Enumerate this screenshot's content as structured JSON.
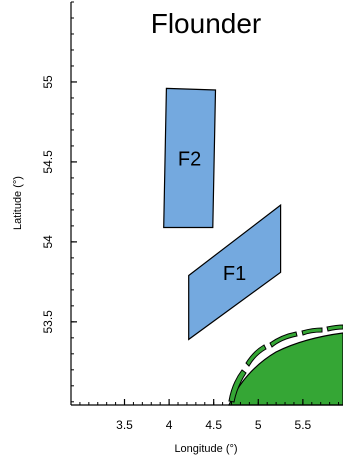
{
  "map": {
    "title": "Flounder",
    "x_axis": {
      "label": "Longitude (°)",
      "ticks": [
        {
          "value": 3.5,
          "label": "3.5"
        },
        {
          "value": 4.0,
          "label": "4"
        },
        {
          "value": 4.5,
          "label": "4.5"
        },
        {
          "value": 5.0,
          "label": "5"
        },
        {
          "value": 5.5,
          "label": "5.5"
        }
      ],
      "range": [
        2.9,
        5.95
      ]
    },
    "y_axis": {
      "label": "Latitude (°)",
      "ticks": [
        {
          "value": 53.5,
          "label": "53.5"
        },
        {
          "value": 54.0,
          "label": "54"
        },
        {
          "value": 54.5,
          "label": "54.5"
        },
        {
          "value": 55.0,
          "label": "55"
        }
      ],
      "range": [
        52.98,
        55.5
      ]
    },
    "areas": [
      {
        "name": "F2",
        "color": "#74a9df",
        "polygon": [
          [
            3.97,
            54.96
          ],
          [
            4.52,
            54.95
          ],
          [
            4.49,
            54.09
          ],
          [
            3.94,
            54.09
          ]
        ]
      },
      {
        "name": "F1",
        "color": "#74a9df",
        "polygon": [
          [
            4.22,
            53.79
          ],
          [
            5.25,
            54.23
          ],
          [
            5.25,
            53.81
          ],
          [
            4.22,
            53.39
          ]
        ]
      }
    ],
    "land_color": "#35a635"
  }
}
